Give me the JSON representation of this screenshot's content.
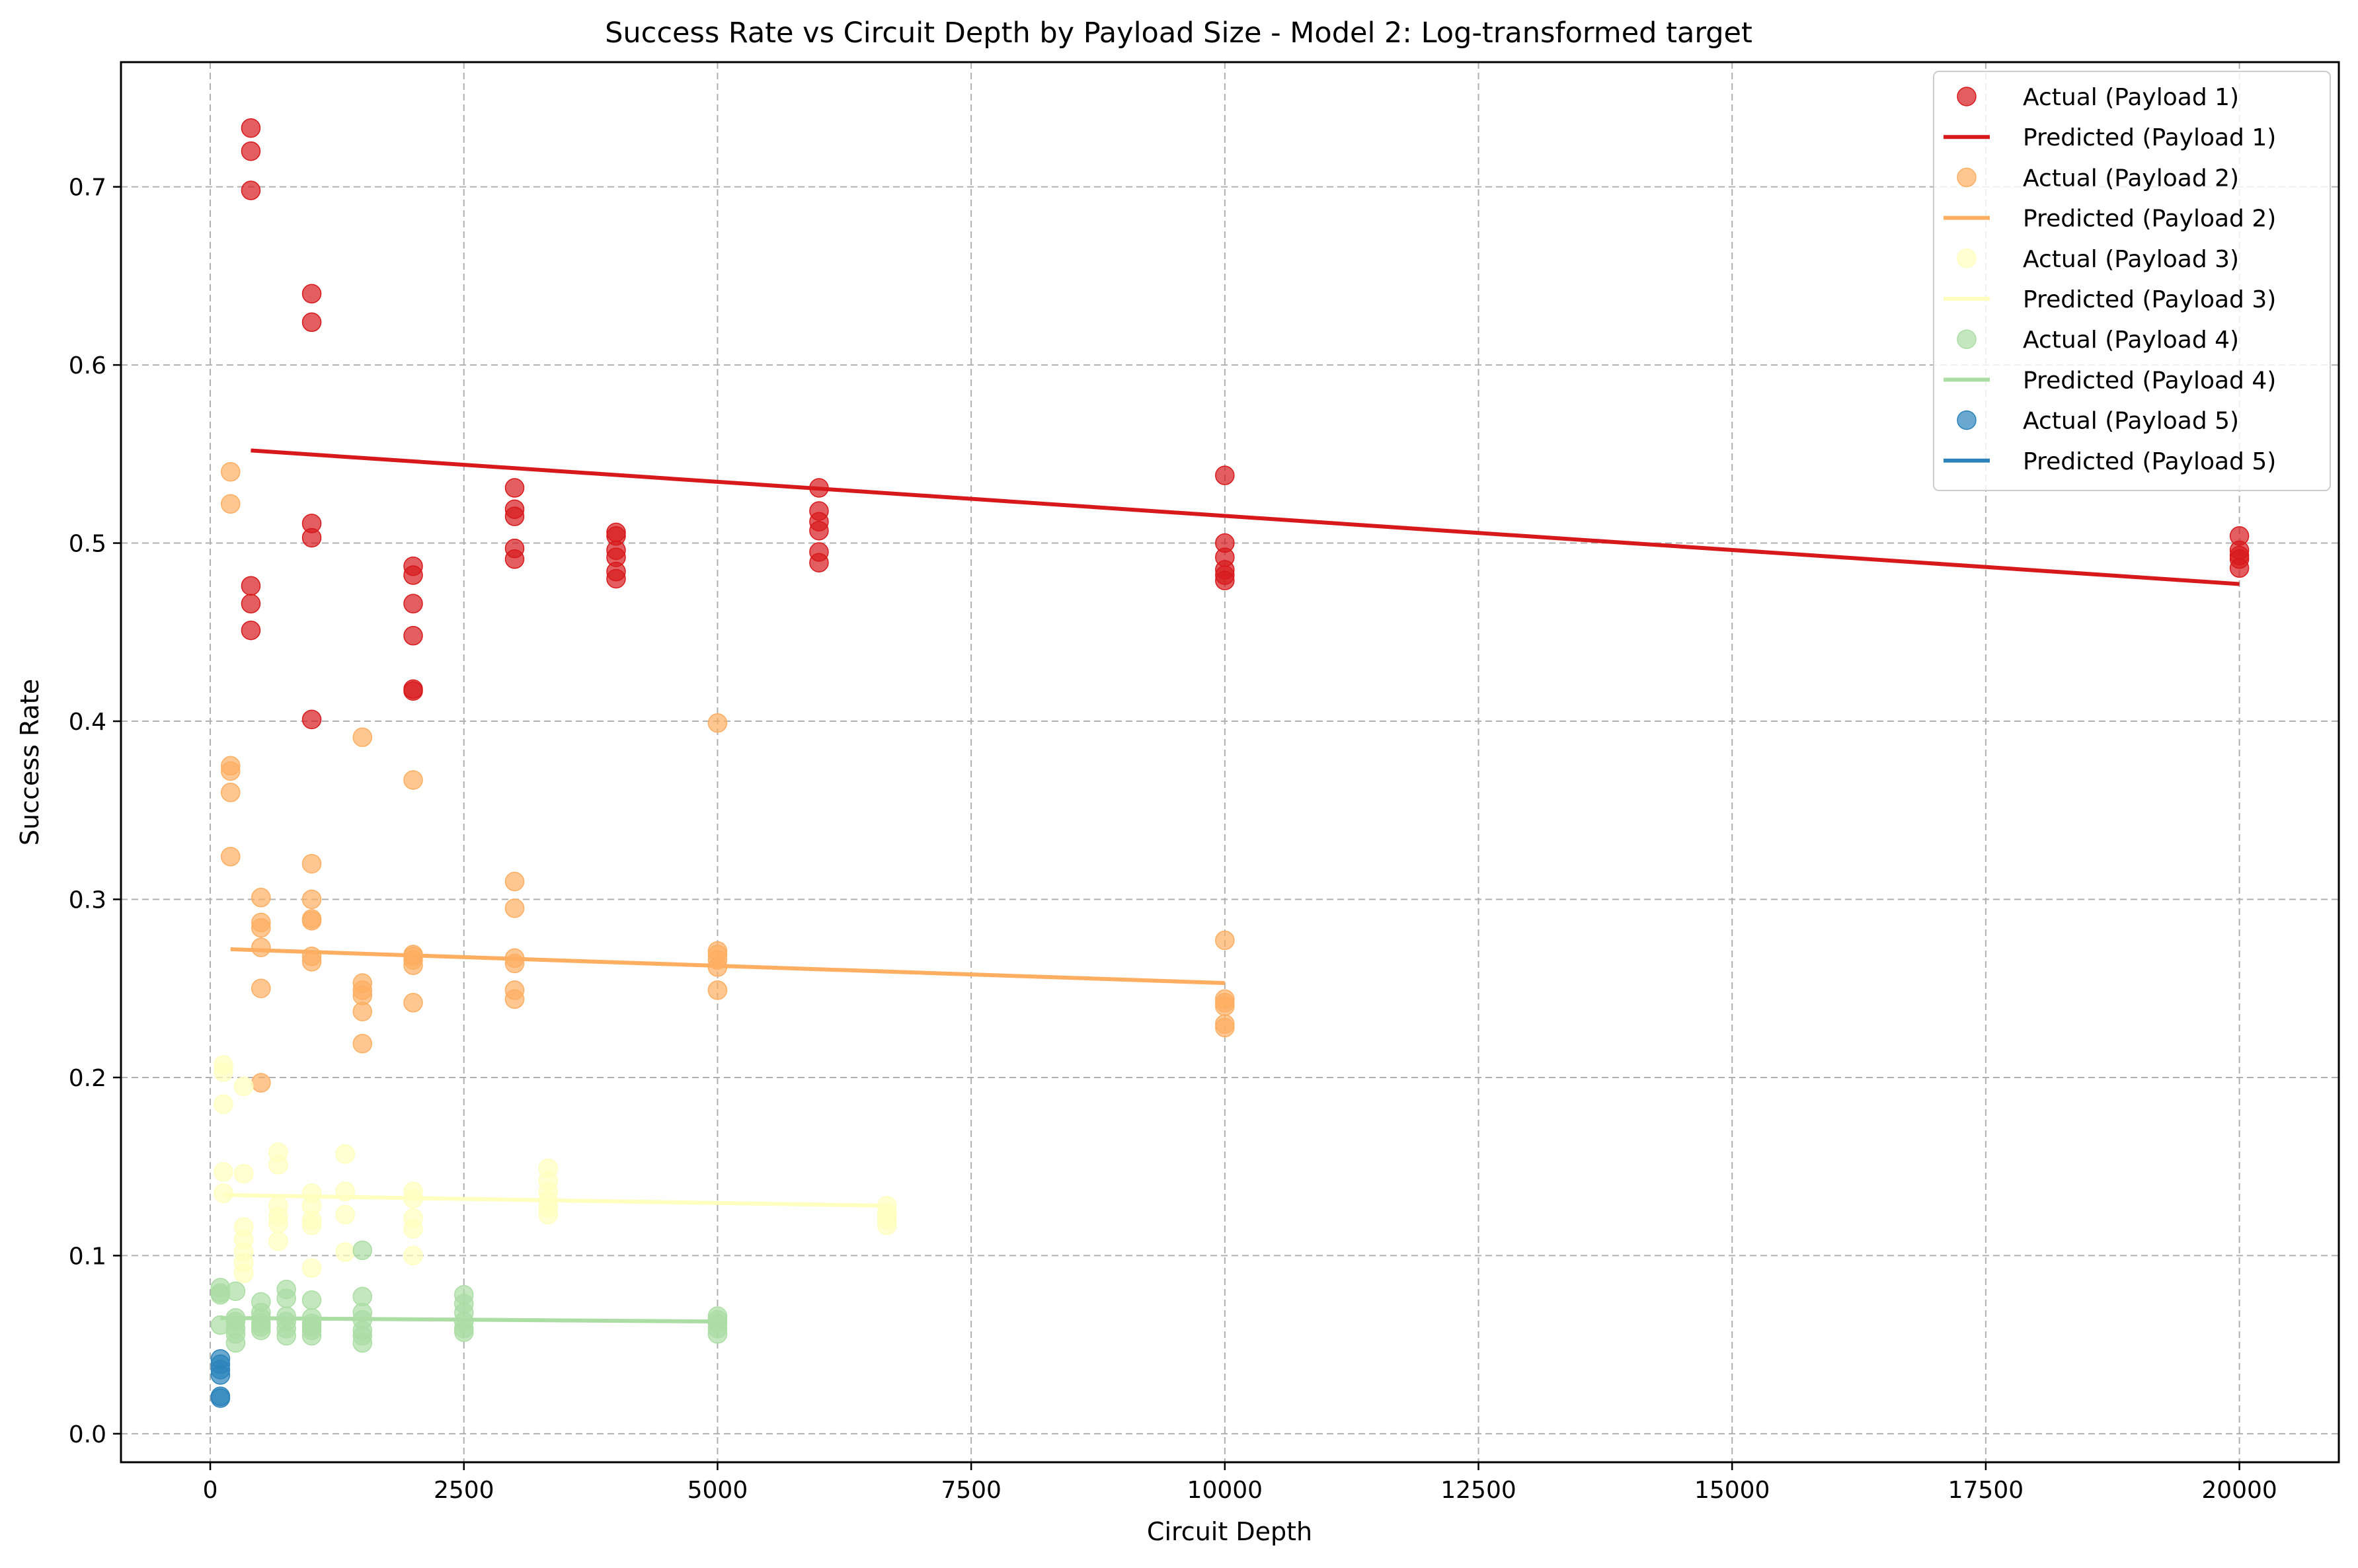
{
  "chart_data": {
    "type": "scatter",
    "title": "Success Rate vs Circuit Depth by Payload Size - Model 2: Log-transformed target",
    "xlabel": "Circuit Depth",
    "ylabel": "Success Rate",
    "xlim": [
      -880,
      20980
    ],
    "ylim": [
      -0.016,
      0.77
    ],
    "xticks": [
      0,
      2500,
      5000,
      7500,
      10000,
      12500,
      15000,
      17500,
      20000
    ],
    "xtick_labels": [
      "0",
      "2500",
      "5000",
      "7500",
      "10000",
      "12500",
      "15000",
      "17500",
      "20000"
    ],
    "yticks": [
      0.0,
      0.1,
      0.2,
      0.3,
      0.4,
      0.5,
      0.6,
      0.7
    ],
    "ytick_labels": [
      "0.0",
      "0.1",
      "0.2",
      "0.3",
      "0.4",
      "0.5",
      "0.6",
      "0.7"
    ],
    "grid": true,
    "legend_position": "top-right",
    "legend": [
      {
        "label": "Actual (Payload 1)",
        "kind": "marker",
        "color": "#d7191c"
      },
      {
        "label": "Predicted (Payload 1)",
        "kind": "line",
        "color": "#d7191c"
      },
      {
        "label": "Actual (Payload 2)",
        "kind": "marker",
        "color": "#fdae61"
      },
      {
        "label": "Predicted (Payload 2)",
        "kind": "line",
        "color": "#fdae61"
      },
      {
        "label": "Actual (Payload 3)",
        "kind": "marker",
        "color": "#ffffbf"
      },
      {
        "label": "Predicted (Payload 3)",
        "kind": "line",
        "color": "#ffffbf"
      },
      {
        "label": "Actual (Payload 4)",
        "kind": "marker",
        "color": "#abdda4"
      },
      {
        "label": "Predicted (Payload 4)",
        "kind": "line",
        "color": "#abdda4"
      },
      {
        "label": "Actual (Payload 5)",
        "kind": "marker",
        "color": "#2b83ba"
      },
      {
        "label": "Predicted (Payload 5)",
        "kind": "line",
        "color": "#2b83ba"
      }
    ],
    "series": [
      {
        "payload": 1,
        "color": "#d7191c",
        "actual": [
          [
            400,
            0.733
          ],
          [
            400,
            0.72
          ],
          [
            400,
            0.698
          ],
          [
            400,
            0.476
          ],
          [
            400,
            0.466
          ],
          [
            400,
            0.451
          ],
          [
            1000,
            0.64
          ],
          [
            1000,
            0.624
          ],
          [
            1000,
            0.511
          ],
          [
            1000,
            0.503
          ],
          [
            1000,
            0.401
          ],
          [
            2000,
            0.487
          ],
          [
            2000,
            0.482
          ],
          [
            2000,
            0.466
          ],
          [
            2000,
            0.448
          ],
          [
            2000,
            0.418
          ],
          [
            2000,
            0.417
          ],
          [
            3000,
            0.531
          ],
          [
            3000,
            0.519
          ],
          [
            3000,
            0.515
          ],
          [
            3000,
            0.497
          ],
          [
            3000,
            0.491
          ],
          [
            4000,
            0.506
          ],
          [
            4000,
            0.504
          ],
          [
            4000,
            0.496
          ],
          [
            4000,
            0.492
          ],
          [
            4000,
            0.484
          ],
          [
            4000,
            0.48
          ],
          [
            6000,
            0.531
          ],
          [
            6000,
            0.518
          ],
          [
            6000,
            0.512
          ],
          [
            6000,
            0.507
          ],
          [
            6000,
            0.495
          ],
          [
            6000,
            0.489
          ],
          [
            10000,
            0.538
          ],
          [
            10000,
            0.5
          ],
          [
            10000,
            0.492
          ],
          [
            10000,
            0.485
          ],
          [
            10000,
            0.482
          ],
          [
            10000,
            0.479
          ],
          [
            20000,
            0.504
          ],
          [
            20000,
            0.496
          ],
          [
            20000,
            0.493
          ],
          [
            20000,
            0.491
          ],
          [
            20000,
            0.486
          ]
        ],
        "predicted": [
          [
            400,
            0.552
          ],
          [
            20000,
            0.477
          ]
        ]
      },
      {
        "payload": 2,
        "color": "#fdae61",
        "actual": [
          [
            200,
            0.54
          ],
          [
            200,
            0.522
          ],
          [
            200,
            0.375
          ],
          [
            200,
            0.372
          ],
          [
            200,
            0.36
          ],
          [
            200,
            0.324
          ],
          [
            500,
            0.301
          ],
          [
            500,
            0.287
          ],
          [
            500,
            0.284
          ],
          [
            500,
            0.273
          ],
          [
            500,
            0.25
          ],
          [
            500,
            0.197
          ],
          [
            1000,
            0.32
          ],
          [
            1000,
            0.3
          ],
          [
            1000,
            0.289
          ],
          [
            1000,
            0.288
          ],
          [
            1000,
            0.268
          ],
          [
            1000,
            0.265
          ],
          [
            1500,
            0.391
          ],
          [
            1500,
            0.253
          ],
          [
            1500,
            0.249
          ],
          [
            1500,
            0.246
          ],
          [
            1500,
            0.237
          ],
          [
            1500,
            0.219
          ],
          [
            2000,
            0.367
          ],
          [
            2000,
            0.269
          ],
          [
            2000,
            0.268
          ],
          [
            2000,
            0.266
          ],
          [
            2000,
            0.263
          ],
          [
            2000,
            0.242
          ],
          [
            3000,
            0.31
          ],
          [
            3000,
            0.295
          ],
          [
            3000,
            0.267
          ],
          [
            3000,
            0.264
          ],
          [
            3000,
            0.249
          ],
          [
            3000,
            0.244
          ],
          [
            5000,
            0.399
          ],
          [
            5000,
            0.271
          ],
          [
            5000,
            0.269
          ],
          [
            5000,
            0.266
          ],
          [
            5000,
            0.262
          ],
          [
            5000,
            0.249
          ],
          [
            10000,
            0.277
          ],
          [
            10000,
            0.244
          ],
          [
            10000,
            0.242
          ],
          [
            10000,
            0.24
          ],
          [
            10000,
            0.23
          ],
          [
            10000,
            0.228
          ]
        ],
        "predicted": [
          [
            200,
            0.272
          ],
          [
            10000,
            0.253
          ]
        ]
      },
      {
        "payload": 3,
        "color": "#ffffbf",
        "actual": [
          [
            130,
            0.207
          ],
          [
            130,
            0.203
          ],
          [
            130,
            0.185
          ],
          [
            130,
            0.147
          ],
          [
            130,
            0.135
          ],
          [
            330,
            0.195
          ],
          [
            330,
            0.146
          ],
          [
            330,
            0.116
          ],
          [
            330,
            0.109
          ],
          [
            330,
            0.102
          ],
          [
            330,
            0.096
          ],
          [
            330,
            0.09
          ],
          [
            670,
            0.158
          ],
          [
            670,
            0.151
          ],
          [
            670,
            0.128
          ],
          [
            670,
            0.122
          ],
          [
            670,
            0.118
          ],
          [
            670,
            0.108
          ],
          [
            1000,
            0.135
          ],
          [
            1000,
            0.128
          ],
          [
            1000,
            0.12
          ],
          [
            1000,
            0.117
          ],
          [
            1000,
            0.093
          ],
          [
            1330,
            0.157
          ],
          [
            1330,
            0.136
          ],
          [
            1330,
            0.123
          ],
          [
            1330,
            0.102
          ],
          [
            2000,
            0.136
          ],
          [
            2000,
            0.132
          ],
          [
            2000,
            0.121
          ],
          [
            2000,
            0.115
          ],
          [
            2000,
            0.1
          ],
          [
            3330,
            0.149
          ],
          [
            3330,
            0.142
          ],
          [
            3330,
            0.136
          ],
          [
            3330,
            0.131
          ],
          [
            3330,
            0.127
          ],
          [
            3330,
            0.123
          ],
          [
            6670,
            0.128
          ],
          [
            6670,
            0.124
          ],
          [
            6670,
            0.122
          ],
          [
            6670,
            0.12
          ],
          [
            6670,
            0.117
          ]
        ],
        "predicted": [
          [
            130,
            0.134
          ],
          [
            6670,
            0.128
          ]
        ]
      },
      {
        "payload": 4,
        "color": "#abdda4",
        "actual": [
          [
            100,
            0.082
          ],
          [
            100,
            0.079
          ],
          [
            100,
            0.078
          ],
          [
            100,
            0.061
          ],
          [
            250,
            0.08
          ],
          [
            250,
            0.065
          ],
          [
            250,
            0.063
          ],
          [
            250,
            0.059
          ],
          [
            250,
            0.056
          ],
          [
            250,
            0.051
          ],
          [
            500,
            0.074
          ],
          [
            500,
            0.068
          ],
          [
            500,
            0.065
          ],
          [
            500,
            0.062
          ],
          [
            500,
            0.06
          ],
          [
            500,
            0.058
          ],
          [
            750,
            0.081
          ],
          [
            750,
            0.076
          ],
          [
            750,
            0.066
          ],
          [
            750,
            0.063
          ],
          [
            750,
            0.059
          ],
          [
            750,
            0.055
          ],
          [
            1000,
            0.075
          ],
          [
            1000,
            0.065
          ],
          [
            1000,
            0.062
          ],
          [
            1000,
            0.06
          ],
          [
            1000,
            0.058
          ],
          [
            1000,
            0.055
          ],
          [
            1500,
            0.103
          ],
          [
            1500,
            0.077
          ],
          [
            1500,
            0.068
          ],
          [
            1500,
            0.064
          ],
          [
            1500,
            0.058
          ],
          [
            1500,
            0.055
          ],
          [
            1500,
            0.051
          ],
          [
            2500,
            0.078
          ],
          [
            2500,
            0.073
          ],
          [
            2500,
            0.068
          ],
          [
            2500,
            0.063
          ],
          [
            2500,
            0.059
          ],
          [
            2500,
            0.057
          ],
          [
            5000,
            0.066
          ],
          [
            5000,
            0.064
          ],
          [
            5000,
            0.062
          ],
          [
            5000,
            0.059
          ],
          [
            5000,
            0.056
          ]
        ],
        "predicted": [
          [
            100,
            0.065
          ],
          [
            5000,
            0.063
          ]
        ]
      },
      {
        "payload": 5,
        "color": "#2b83ba",
        "actual": [
          [
            100,
            0.042
          ],
          [
            100,
            0.039
          ],
          [
            100,
            0.036
          ],
          [
            100,
            0.033
          ],
          [
            100,
            0.021
          ],
          [
            100,
            0.02
          ]
        ],
        "predicted": [
          [
            100,
            0.038
          ],
          [
            100,
            0.036
          ]
        ]
      }
    ]
  }
}
